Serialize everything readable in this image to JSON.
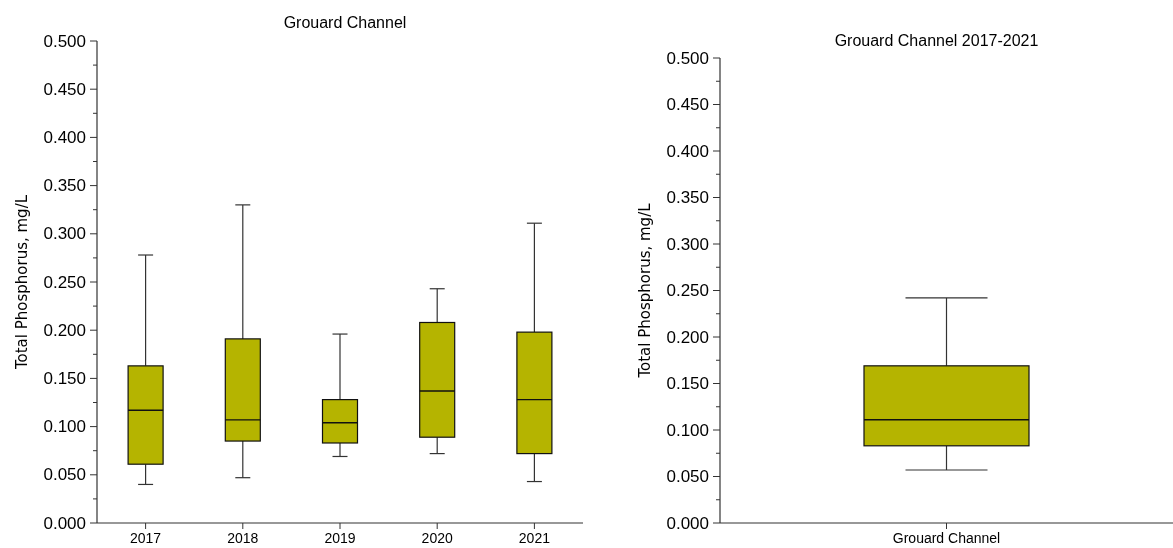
{
  "chart_data": [
    {
      "type": "box",
      "title": "Grouard Channel",
      "ylabel": "Total Phosphorus, mg/L",
      "categories": [
        "2017",
        "2018",
        "2019",
        "2020",
        "2021"
      ],
      "ylim": [
        0,
        0.5
      ],
      "yticks": [
        {
          "value": 0,
          "label": "0.000"
        },
        {
          "value": 0.025,
          "label": null
        },
        {
          "value": 0.05,
          "label": "0.050"
        },
        {
          "value": 0.075,
          "label": null
        },
        {
          "value": 0.1,
          "label": "0.100"
        },
        {
          "value": 0.125,
          "label": null
        },
        {
          "value": 0.15,
          "label": "0.150"
        },
        {
          "value": 0.175,
          "label": null
        },
        {
          "value": 0.2,
          "label": "0.200"
        },
        {
          "value": 0.225,
          "label": null
        },
        {
          "value": 0.25,
          "label": "0.250"
        },
        {
          "value": 0.275,
          "label": null
        },
        {
          "value": 0.3,
          "label": "0.300"
        },
        {
          "value": 0.325,
          "label": null
        },
        {
          "value": 0.35,
          "label": "0.350"
        },
        {
          "value": 0.375,
          "label": null
        },
        {
          "value": 0.4,
          "label": "0.400"
        },
        {
          "value": 0.425,
          "label": null
        },
        {
          "value": 0.45,
          "label": "0.450"
        },
        {
          "value": 0.475,
          "label": null
        },
        {
          "value": 0.5,
          "label": "0.500"
        }
      ],
      "series": [
        {
          "color": "#b5b400",
          "boxes": [
            {
              "low": 0.04,
              "q1": 0.061,
              "median": 0.117,
              "q3": 0.163,
              "high": 0.278
            },
            {
              "low": 0.047,
              "q1": 0.085,
              "median": 0.107,
              "q3": 0.191,
              "high": 0.33
            },
            {
              "low": 0.069,
              "q1": 0.083,
              "median": 0.104,
              "q3": 0.128,
              "high": 0.196
            },
            {
              "low": 0.072,
              "q1": 0.089,
              "median": 0.137,
              "q3": 0.208,
              "high": 0.243
            },
            {
              "low": 0.043,
              "q1": 0.072,
              "median": 0.128,
              "q3": 0.198,
              "high": 0.311
            }
          ]
        }
      ]
    },
    {
      "type": "box",
      "title": "Grouard Channel 2017-2021",
      "ylabel": "Total Phosphorus, mg/L",
      "categories": [
        "Grouard Channel"
      ],
      "ylim": [
        0,
        0.5
      ],
      "yticks": [
        {
          "value": 0,
          "label": "0.000"
        },
        {
          "value": 0.025,
          "label": null
        },
        {
          "value": 0.05,
          "label": "0.050"
        },
        {
          "value": 0.075,
          "label": null
        },
        {
          "value": 0.1,
          "label": "0.100"
        },
        {
          "value": 0.125,
          "label": null
        },
        {
          "value": 0.15,
          "label": "0.150"
        },
        {
          "value": 0.175,
          "label": null
        },
        {
          "value": 0.2,
          "label": "0.200"
        },
        {
          "value": 0.225,
          "label": null
        },
        {
          "value": 0.25,
          "label": "0.250"
        },
        {
          "value": 0.275,
          "label": null
        },
        {
          "value": 0.3,
          "label": "0.300"
        },
        {
          "value": 0.325,
          "label": null
        },
        {
          "value": 0.35,
          "label": "0.350"
        },
        {
          "value": 0.375,
          "label": null
        },
        {
          "value": 0.4,
          "label": "0.400"
        },
        {
          "value": 0.425,
          "label": null
        },
        {
          "value": 0.45,
          "label": "0.450"
        },
        {
          "value": 0.475,
          "label": null
        },
        {
          "value": 0.5,
          "label": "0.500"
        }
      ],
      "series": [
        {
          "color": "#b5b400",
          "boxes": [
            {
              "low": 0.057,
              "q1": 0.083,
              "median": 0.111,
              "q3": 0.169,
              "high": 0.242
            }
          ]
        }
      ]
    }
  ]
}
